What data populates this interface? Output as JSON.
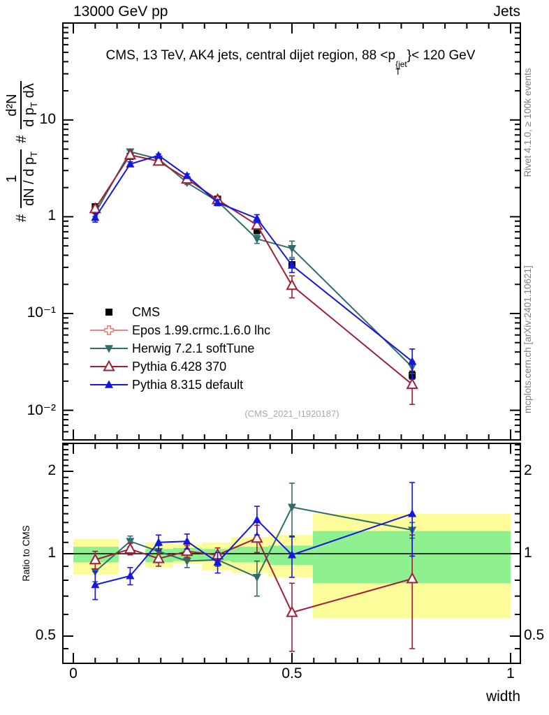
{
  "header": {
    "beam": "13000 GeV pp",
    "process": "Jets"
  },
  "title": {
    "prefix": "CMS, 13 TeV, AK4 jets, central dijet region, 88 <p",
    "sup": "{jet",
    "sub": "T",
    "suffix": "}< 120 GeV"
  },
  "ylabel": {
    "hash1": "#",
    "frac1_num": "1",
    "frac1_den_main": "dN / d p",
    "frac1_den_sub": "T",
    "hash2": "#",
    "frac2_num": "d²N",
    "frac2_den_main": "d p",
    "frac2_den_sub": "T",
    "frac2_den_tail": " dλ"
  },
  "ratio_label": "Ratio to CMS",
  "watermark": "(CMS_2021_I1920187)",
  "side_notes": {
    "top": "Rivet 4.1.0, ≥ 100k events",
    "bottom": "mcplots.cern.ch [arXiv:2401.10621]"
  },
  "colors": {
    "cms": "#000000",
    "epos": "#f08080",
    "herwig": "#2f6c6c",
    "pythia6": "#a02035",
    "pythia8": "#1616dd",
    "band_yellow": "#fcfc9a",
    "band_green": "#8ef08e"
  },
  "legend": [
    {
      "label": "CMS",
      "marker": "square-filled",
      "color": "#000000",
      "line": false
    },
    {
      "label": "Epos 1.99.crmc.1.6.0 lhc",
      "marker": "cross-open",
      "color": "#f08080",
      "line": true
    },
    {
      "label": "Herwig 7.2.1 softTune",
      "marker": "triangle-down-filled",
      "color": "#2f6c6c",
      "line": true
    },
    {
      "label": "Pythia 6.428 370",
      "marker": "triangle-open",
      "color": "#a02035",
      "line": true
    },
    {
      "label": "Pythia 8.315 default",
      "marker": "triangle-filled",
      "color": "#1616dd",
      "line": true
    }
  ],
  "chart_data": {
    "type": "line",
    "observable": "width",
    "x": [
      0.05,
      0.13,
      0.195,
      0.26,
      0.33,
      0.42,
      0.5,
      0.775
    ],
    "series": [
      {
        "name": "CMS",
        "marker": "square-filled",
        "color": "#000000",
        "values": [
          1.27,
          4.2,
          3.9,
          2.4,
          1.52,
          0.72,
          0.32,
          0.023
        ],
        "errors": [
          0.05,
          0.12,
          0.1,
          0.07,
          0.05,
          0.03,
          0.02,
          0.002
        ],
        "ratio": [],
        "ratio_errors": []
      },
      {
        "name": "Epos 1.99.crmc.1.6.0 lhc",
        "marker": "cross-open",
        "color": "#f08080",
        "values": [],
        "errors": [],
        "ratio": [],
        "ratio_errors": []
      },
      {
        "name": "Herwig 7.2.1 softTune",
        "marker": "triangle-down-filled",
        "color": "#2f6c6c",
        "values": [
          1.09,
          4.7,
          3.95,
          2.25,
          1.44,
          0.59,
          0.47,
          0.028
        ],
        "errors": [
          0.08,
          0.15,
          0.12,
          0.1,
          0.08,
          0.06,
          0.09,
          0.004
        ],
        "ratio": [
          0.86,
          1.11,
          1.02,
          0.94,
          0.95,
          0.82,
          1.48,
          1.22
        ],
        "ratio_errors": [
          0.07,
          0.05,
          0.05,
          0.05,
          0.05,
          0.12,
          0.33,
          0.08
        ]
      },
      {
        "name": "Pythia 6.428 370",
        "marker": "triangle-open",
        "color": "#a02035",
        "values": [
          1.21,
          4.35,
          3.75,
          2.45,
          1.5,
          0.82,
          0.195,
          0.0185
        ],
        "errors": [
          0.09,
          0.15,
          0.12,
          0.1,
          0.08,
          0.07,
          0.05,
          0.007
        ],
        "ratio": [
          0.95,
          1.04,
          0.96,
          1.02,
          0.99,
          1.14,
          0.61,
          0.81
        ],
        "ratio_errors": [
          0.07,
          0.05,
          0.06,
          0.05,
          0.06,
          0.13,
          0.17,
          0.36
        ]
      },
      {
        "name": "Pythia 8.315 default",
        "marker": "triangle-filled",
        "color": "#1616dd",
        "values": [
          0.98,
          3.5,
          4.3,
          2.65,
          1.4,
          0.96,
          0.315,
          0.032
        ],
        "errors": [
          0.1,
          0.2,
          0.15,
          0.12,
          0.1,
          0.09,
          0.05,
          0.011
        ],
        "ratio": [
          0.77,
          0.83,
          1.1,
          1.11,
          0.93,
          1.33,
          0.99,
          1.4
        ],
        "ratio_errors": [
          0.09,
          0.06,
          0.07,
          0.07,
          0.08,
          0.16,
          0.17,
          0.42
        ]
      }
    ],
    "bands": [
      {
        "x0": 0.0,
        "x1": 0.104,
        "yellow": [
          0.84,
          1.13
        ],
        "green": [
          0.93,
          1.06
        ]
      },
      {
        "x0": 0.165,
        "x1": 0.228,
        "yellow": [
          0.89,
          1.1
        ],
        "green": [
          0.93,
          1.04
        ]
      },
      {
        "x0": 0.228,
        "x1": 0.294,
        "yellow": [
          0.92,
          1.08
        ],
        "green": [
          0.94,
          1.05
        ]
      },
      {
        "x0": 0.294,
        "x1": 0.361,
        "yellow": [
          0.87,
          1.1
        ],
        "green": [
          0.94,
          1.04
        ]
      },
      {
        "x0": 0.361,
        "x1": 0.446,
        "yellow": [
          0.85,
          1.15
        ],
        "green": [
          0.93,
          1.06
        ]
      },
      {
        "x0": 0.446,
        "x1": 0.548,
        "yellow": [
          0.82,
          1.17
        ],
        "green": [
          0.91,
          1.07
        ]
      },
      {
        "x0": 0.548,
        "x1": 1.0,
        "yellow": [
          0.58,
          1.4
        ],
        "green": [
          0.78,
          1.21
        ]
      }
    ],
    "main_axis": {
      "scale": "log",
      "ticks": [
        "10",
        "1",
        "10⁻¹",
        "10⁻²"
      ],
      "tick_values": [
        10,
        1,
        0.1,
        0.01
      ],
      "range": [
        0.005,
        100
      ]
    },
    "ratio_axis": {
      "scale": "log",
      "ticks": [
        "2",
        "1",
        "0.5"
      ],
      "tick_values": [
        2,
        1,
        0.5
      ],
      "range": [
        0.4,
        2.53
      ],
      "reference": 1
    },
    "x_axis": {
      "ticks": [
        "0",
        "0.5",
        "1"
      ],
      "tick_values": [
        0,
        0.5,
        1
      ],
      "range": [
        0,
        1
      ],
      "minor_step": 0.05,
      "label": "width"
    }
  }
}
